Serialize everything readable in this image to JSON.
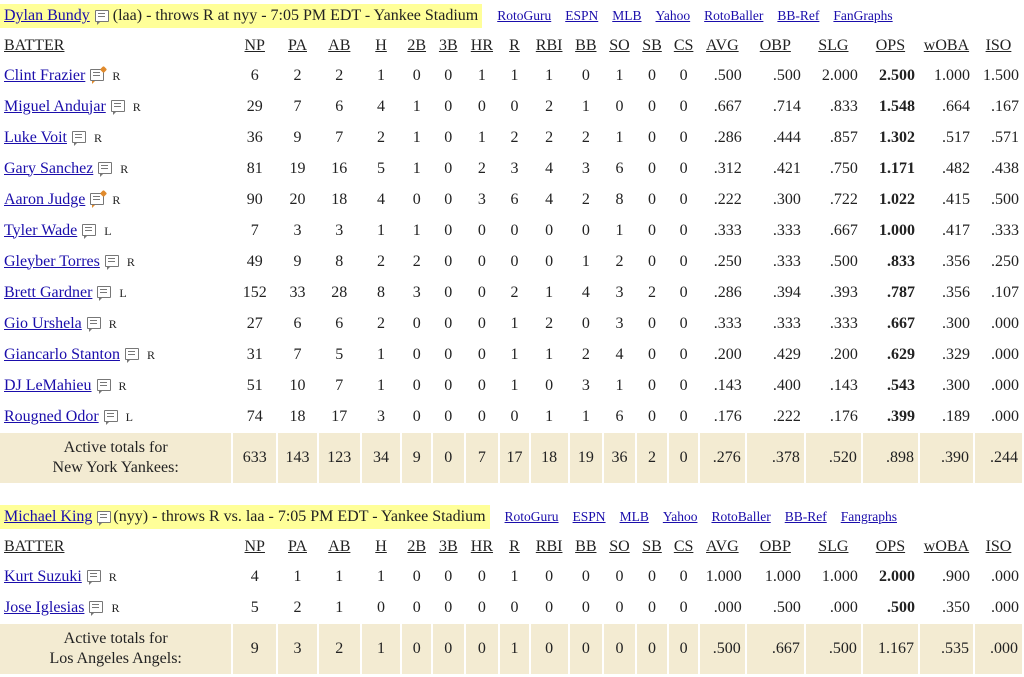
{
  "game1": {
    "pitcher_name": "Dylan Bundy",
    "pitcher_info": "(laa) - throws R at nyy - 7:05 PM EDT - Yankee Stadium",
    "links": [
      "RotoGuru",
      "ESPN",
      "MLB",
      "Yahoo",
      "RotoBaller",
      "BB-Ref",
      "FanGraphs"
    ],
    "columns": [
      "BATTER",
      "NP",
      "PA",
      "AB",
      "H",
      "2B",
      "3B",
      "HR",
      "R",
      "RBI",
      "BB",
      "SO",
      "SB",
      "CS",
      "AVG",
      "OBP",
      "SLG",
      "OPS",
      "wOBA",
      "ISO"
    ],
    "rows": [
      {
        "name": "Clint Frazier",
        "hand": "R",
        "note": "hot",
        "stats": [
          "6",
          "2",
          "2",
          "1",
          "0",
          "0",
          "1",
          "1",
          "1",
          "0",
          "1",
          "0",
          "0",
          ".500",
          ".500",
          "2.000",
          "2.500",
          "1.000",
          "1.500"
        ]
      },
      {
        "name": "Miguel Andujar",
        "hand": "R",
        "note": "plain",
        "stats": [
          "29",
          "7",
          "6",
          "4",
          "1",
          "0",
          "0",
          "0",
          "2",
          "1",
          "0",
          "0",
          "0",
          ".667",
          ".714",
          ".833",
          "1.548",
          ".664",
          ".167"
        ]
      },
      {
        "name": "Luke Voit",
        "hand": "R",
        "note": "plain",
        "stats": [
          "36",
          "9",
          "7",
          "2",
          "1",
          "0",
          "1",
          "2",
          "2",
          "2",
          "1",
          "0",
          "0",
          ".286",
          ".444",
          ".857",
          "1.302",
          ".517",
          ".571"
        ]
      },
      {
        "name": "Gary Sanchez",
        "hand": "R",
        "note": "plain",
        "stats": [
          "81",
          "19",
          "16",
          "5",
          "1",
          "0",
          "2",
          "3",
          "4",
          "3",
          "6",
          "0",
          "0",
          ".312",
          ".421",
          ".750",
          "1.171",
          ".482",
          ".438"
        ]
      },
      {
        "name": "Aaron Judge",
        "hand": "R",
        "note": "hot",
        "stats": [
          "90",
          "20",
          "18",
          "4",
          "0",
          "0",
          "3",
          "6",
          "4",
          "2",
          "8",
          "0",
          "0",
          ".222",
          ".300",
          ".722",
          "1.022",
          ".415",
          ".500"
        ]
      },
      {
        "name": "Tyler Wade",
        "hand": "L",
        "note": "plain",
        "stats": [
          "7",
          "3",
          "3",
          "1",
          "1",
          "0",
          "0",
          "0",
          "0",
          "0",
          "1",
          "0",
          "0",
          ".333",
          ".333",
          ".667",
          "1.000",
          ".417",
          ".333"
        ]
      },
      {
        "name": "Gleyber Torres",
        "hand": "R",
        "note": "plain",
        "stats": [
          "49",
          "9",
          "8",
          "2",
          "2",
          "0",
          "0",
          "0",
          "0",
          "1",
          "2",
          "0",
          "0",
          ".250",
          ".333",
          ".500",
          ".833",
          ".356",
          ".250"
        ]
      },
      {
        "name": "Brett Gardner",
        "hand": "L",
        "note": "plain",
        "stats": [
          "152",
          "33",
          "28",
          "8",
          "3",
          "0",
          "0",
          "2",
          "1",
          "4",
          "3",
          "2",
          "0",
          ".286",
          ".394",
          ".393",
          ".787",
          ".356",
          ".107"
        ]
      },
      {
        "name": "Gio Urshela",
        "hand": "R",
        "note": "plain",
        "stats": [
          "27",
          "6",
          "6",
          "2",
          "0",
          "0",
          "0",
          "1",
          "2",
          "0",
          "3",
          "0",
          "0",
          ".333",
          ".333",
          ".333",
          ".667",
          ".300",
          ".000"
        ]
      },
      {
        "name": "Giancarlo Stanton",
        "hand": "R",
        "note": "plain",
        "stats": [
          "31",
          "7",
          "5",
          "1",
          "0",
          "0",
          "0",
          "1",
          "1",
          "2",
          "4",
          "0",
          "0",
          ".200",
          ".429",
          ".200",
          ".629",
          ".329",
          ".000"
        ]
      },
      {
        "name": "DJ LeMahieu",
        "hand": "R",
        "note": "plain",
        "stats": [
          "51",
          "10",
          "7",
          "1",
          "0",
          "0",
          "0",
          "1",
          "0",
          "3",
          "1",
          "0",
          "0",
          ".143",
          ".400",
          ".143",
          ".543",
          ".300",
          ".000"
        ]
      },
      {
        "name": "Rougned Odor",
        "hand": "L",
        "note": "plain",
        "stats": [
          "74",
          "18",
          "17",
          "3",
          "0",
          "0",
          "0",
          "0",
          "1",
          "1",
          "6",
          "0",
          "0",
          ".176",
          ".222",
          ".176",
          ".399",
          ".189",
          ".000"
        ]
      }
    ],
    "totals": {
      "label_line1": "Active totals for",
      "label_line2": "New York Yankees:",
      "stats": [
        "633",
        "143",
        "123",
        "34",
        "9",
        "0",
        "7",
        "17",
        "18",
        "19",
        "36",
        "2",
        "0",
        ".276",
        ".378",
        ".520",
        ".898",
        ".390",
        ".244"
      ]
    }
  },
  "game2": {
    "pitcher_name": "Michael King",
    "pitcher_info": "(nyy) - throws R vs. laa - 7:05 PM EDT - Yankee Stadium",
    "links": [
      "RotoGuru",
      "ESPN",
      "MLB",
      "Yahoo",
      "RotoBaller",
      "BB-Ref",
      "Fangraphs"
    ],
    "columns": [
      "BATTER",
      "NP",
      "PA",
      "AB",
      "H",
      "2B",
      "3B",
      "HR",
      "R",
      "RBI",
      "BB",
      "SO",
      "SB",
      "CS",
      "AVG",
      "OBP",
      "SLG",
      "OPS",
      "wOBA",
      "ISO"
    ],
    "rows": [
      {
        "name": "Kurt Suzuki",
        "hand": "R",
        "note": "plain",
        "stats": [
          "4",
          "1",
          "1",
          "1",
          "0",
          "0",
          "0",
          "1",
          "0",
          "0",
          "0",
          "0",
          "0",
          "1.000",
          "1.000",
          "1.000",
          "2.000",
          ".900",
          ".000"
        ]
      },
      {
        "name": "Jose Iglesias",
        "hand": "R",
        "note": "plain",
        "stats": [
          "5",
          "2",
          "1",
          "0",
          "0",
          "0",
          "0",
          "0",
          "0",
          "0",
          "0",
          "0",
          "0",
          ".000",
          ".500",
          ".000",
          ".500",
          ".350",
          ".000"
        ]
      }
    ],
    "totals": {
      "label_line1": "Active totals for",
      "label_line2": "Los Angeles Angels:",
      "stats": [
        "9",
        "3",
        "2",
        "1",
        "0",
        "0",
        "0",
        "1",
        "0",
        "0",
        "0",
        "0",
        "0",
        ".500",
        ".667",
        ".500",
        "1.167",
        ".535",
        ".000"
      ]
    }
  }
}
